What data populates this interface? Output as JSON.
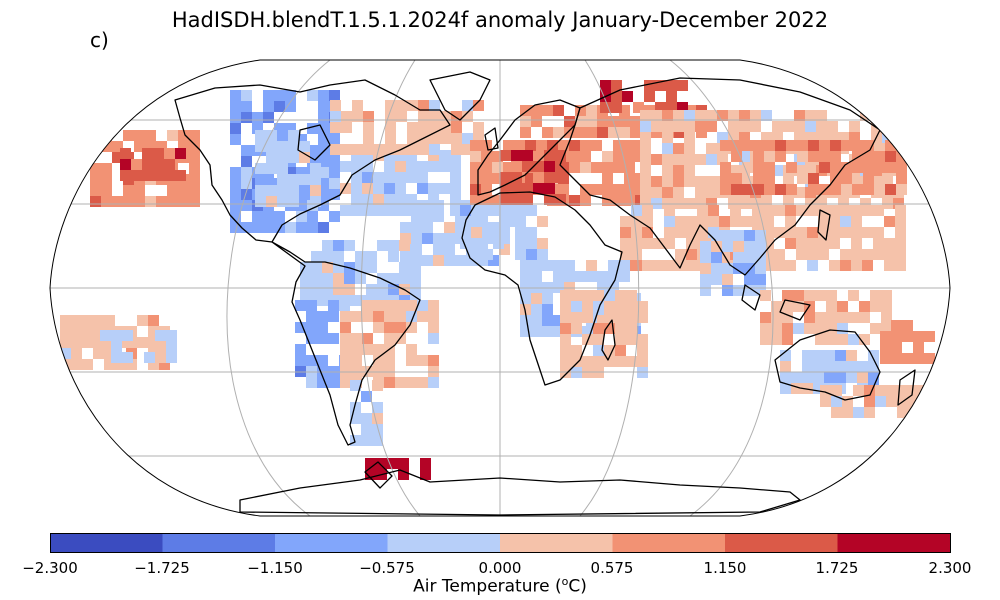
{
  "title": "HadISDH.blendT.1.5.1.2024f anomaly January-December 2022",
  "panel_label": "c)",
  "colorbar": {
    "label_prefix": "Air Temperature (",
    "label_sup": "o",
    "label_suffix": "C)",
    "ticks": [
      "−2.300",
      "−1.725",
      "−1.150",
      "−0.575",
      "0.000",
      "0.575",
      "1.150",
      "1.725",
      "2.300"
    ],
    "colors": [
      "#3b4cc0",
      "#5d7ce6",
      "#82a6fb",
      "#b7cff9",
      "#f5c2aa",
      "#f29274",
      "#db5a48",
      "#b40426"
    ]
  },
  "map": {
    "projection": "Robinson",
    "bin_edges": [
      -2.3,
      -1.725,
      -1.15,
      -0.575,
      0.0,
      0.575,
      1.15,
      1.725,
      2.3
    ],
    "gridlines": true
  }
}
